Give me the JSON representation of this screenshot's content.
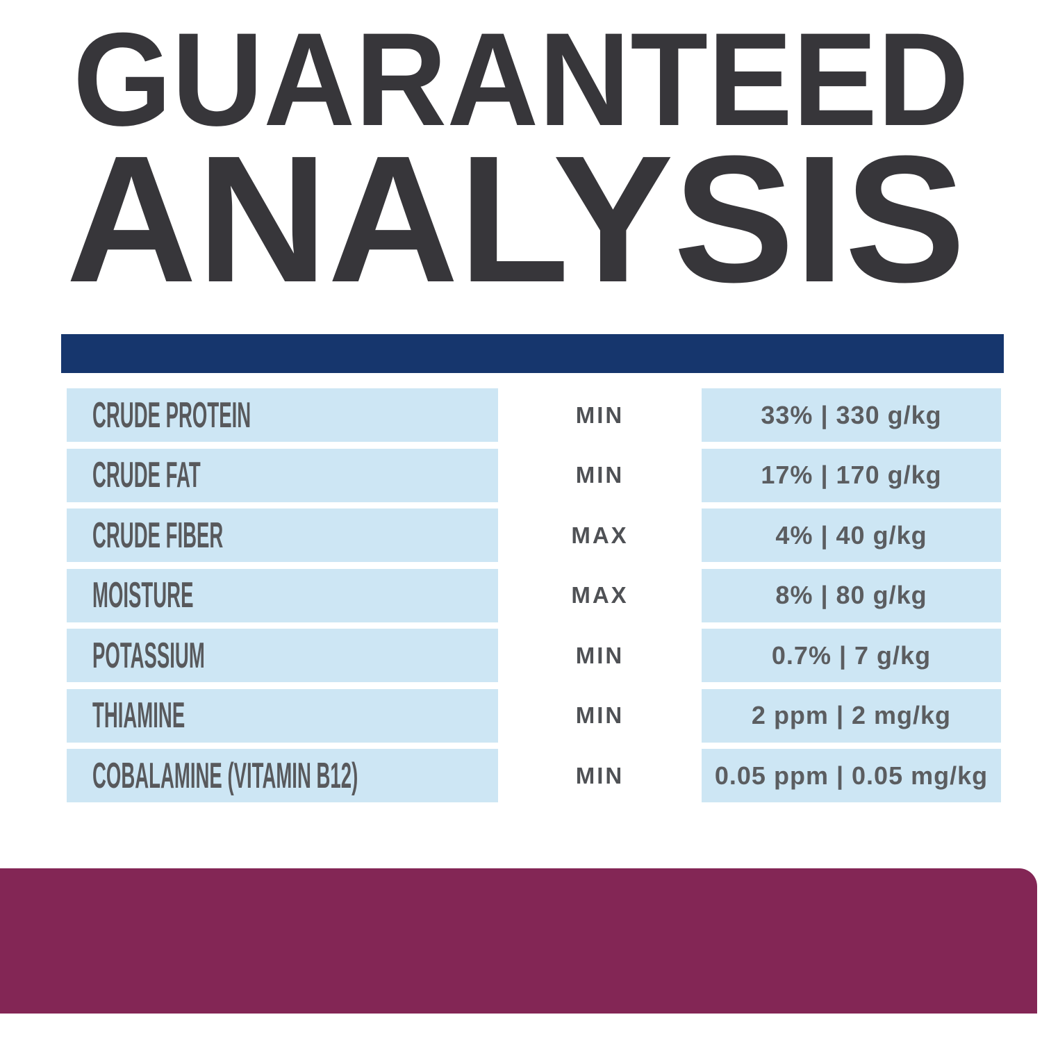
{
  "title": {
    "line1": "GUARANTEED",
    "line2": "ANALYSIS"
  },
  "table": {
    "rows": [
      {
        "label": "CRUDE PROTEIN",
        "qualifier": "MIN",
        "value": "33% | 330 g/kg"
      },
      {
        "label": "CRUDE FAT",
        "qualifier": "MIN",
        "value": "17% | 170 g/kg"
      },
      {
        "label": "CRUDE FIBER",
        "qualifier": "MAX",
        "value": "4% | 40 g/kg"
      },
      {
        "label": "MOISTURE",
        "qualifier": "MAX",
        "value": "8% | 80 g/kg"
      },
      {
        "label": "POTASSIUM",
        "qualifier": "MIN",
        "value": "0.7% | 7 g/kg"
      },
      {
        "label": "THIAMINE",
        "qualifier": "MIN",
        "value": "2 ppm | 2 mg/kg"
      },
      {
        "label": "COBALAMINE (VITAMIN B12)",
        "qualifier": "MIN",
        "value": "0.05 ppm | 0.05 mg/kg"
      }
    ]
  },
  "colors": {
    "title_text": "#37363A",
    "navy_bar": "#16366D",
    "cell_blue": "#CDE6F4",
    "label_text": "#58595C",
    "qualifier_text": "#4F5155",
    "value_text": "#5B5D60",
    "maroon_bar": "#832655",
    "background": "#FFFFFF"
  }
}
